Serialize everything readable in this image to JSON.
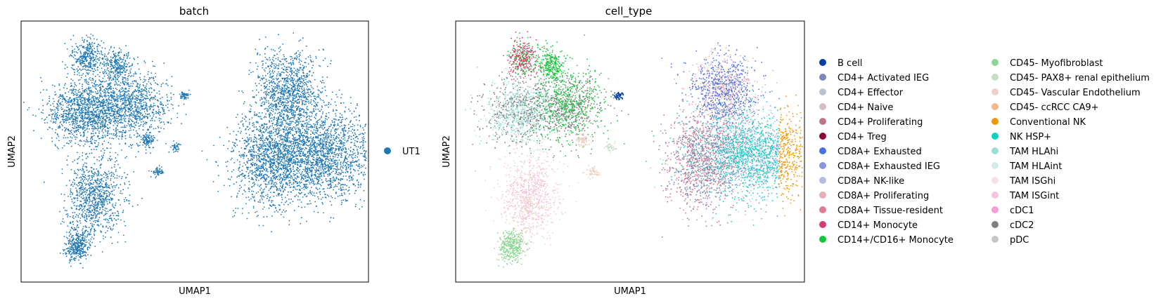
{
  "chart_data": [
    {
      "type": "scatter",
      "title": "batch",
      "xlabel": "UMAP1",
      "ylabel": "UMAP2",
      "grid": false,
      "legend_placement": "right",
      "series": [
        {
          "name": "UT1",
          "color": "#1f77b4"
        }
      ]
    },
    {
      "type": "scatter",
      "title": "cell_type",
      "xlabel": "UMAP1",
      "ylabel": "UMAP2",
      "grid": false,
      "legend_placement": "right",
      "series": [
        {
          "name": "B cell",
          "color": "#023fa5"
        },
        {
          "name": "CD4+ Activated IEG",
          "color": "#7d87b9"
        },
        {
          "name": "CD4+ Effector",
          "color": "#bec1d4"
        },
        {
          "name": "CD4+ Naive",
          "color": "#d6bcc0"
        },
        {
          "name": "CD4+ Proliferating",
          "color": "#bb7784"
        },
        {
          "name": "CD4+ Treg",
          "color": "#8e063b"
        },
        {
          "name": "CD8A+ Exhausted",
          "color": "#4a6fe3"
        },
        {
          "name": "CD8A+ Exhausted IEG",
          "color": "#8595e1"
        },
        {
          "name": "CD8A+ NK-like",
          "color": "#b5bbe3"
        },
        {
          "name": "CD8A+ Proliferating",
          "color": "#e6afb9"
        },
        {
          "name": "CD8A+ Tissue-resident",
          "color": "#e07b91"
        },
        {
          "name": "CD14+ Monocyte",
          "color": "#d33f6a"
        },
        {
          "name": "CD14+/CD16+ Monocyte",
          "color": "#11c638"
        },
        {
          "name": "CD45- Myofibroblast",
          "color": "#8dd593"
        },
        {
          "name": "CD45- PAX8+ renal epithelium",
          "color": "#c6dec7"
        },
        {
          "name": "CD45- Vascular Endothelium",
          "color": "#ead3c6"
        },
        {
          "name": "CD45- ccRCC CA9+",
          "color": "#f0b98d"
        },
        {
          "name": "Conventional NK",
          "color": "#ef9708"
        },
        {
          "name": "NK HSP+",
          "color": "#0fcfc0"
        },
        {
          "name": "TAM HLAhi",
          "color": "#9cded6"
        },
        {
          "name": "TAM HLAint",
          "color": "#d5eae7"
        },
        {
          "name": "TAM ISGhi",
          "color": "#f3e1eb"
        },
        {
          "name": "TAM ISGint",
          "color": "#f6c4e1"
        },
        {
          "name": "cDC1",
          "color": "#f79cd4"
        },
        {
          "name": "cDC2",
          "color": "#7f7f7f"
        },
        {
          "name": "pDC",
          "color": "#c7c7c7"
        }
      ]
    }
  ]
}
